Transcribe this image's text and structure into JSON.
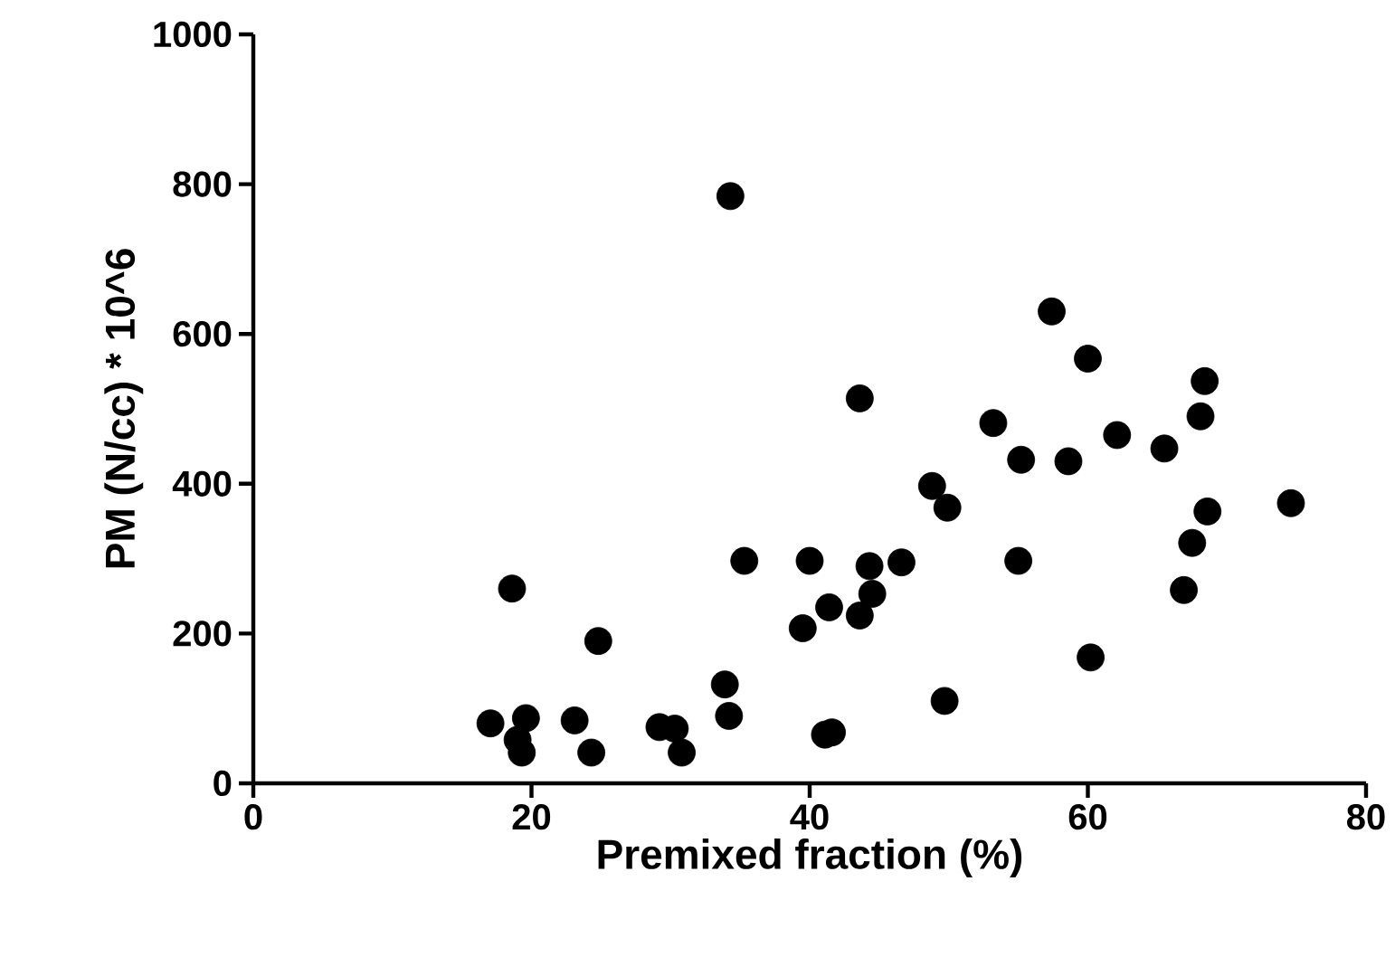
{
  "chart_data": {
    "type": "scatter",
    "xlabel": "Premixed fraction (%)",
    "ylabel": "PM (N/cc) * 10^6",
    "x": [
      17.05,
      18.6,
      19.6,
      19.0,
      19.3,
      23.1,
      24.3,
      24.8,
      29.2,
      30.3,
      30.8,
      33.9,
      34.2,
      34.3,
      35.3,
      39.5,
      40.0,
      41.1,
      41.6,
      41.4,
      43.6,
      44.5,
      44.3,
      43.6,
      46.6,
      48.8,
      49.9,
      49.7,
      53.2,
      55.0,
      55.2,
      57.4,
      58.6,
      60.0,
      60.2,
      62.1,
      65.5,
      66.9,
      67.5,
      68.1,
      68.4,
      68.6,
      74.6
    ],
    "values": [
      80,
      260,
      87,
      58,
      41,
      84,
      41,
      190,
      75,
      73,
      41,
      132,
      90,
      784,
      297,
      207,
      297,
      65,
      68,
      235,
      224,
      253,
      290,
      514,
      295,
      397,
      368,
      110,
      481,
      297,
      432,
      630,
      430,
      567,
      168,
      465,
      447,
      258,
      321,
      490,
      537,
      363,
      374
    ],
    "color": "#000000",
    "marker": "circle",
    "xlim": [
      0,
      80
    ],
    "ylim": [
      0,
      1000
    ],
    "xticks": [
      0,
      20,
      40,
      60,
      80
    ],
    "yticks": [
      0,
      200,
      400,
      600,
      800,
      1000
    ]
  }
}
